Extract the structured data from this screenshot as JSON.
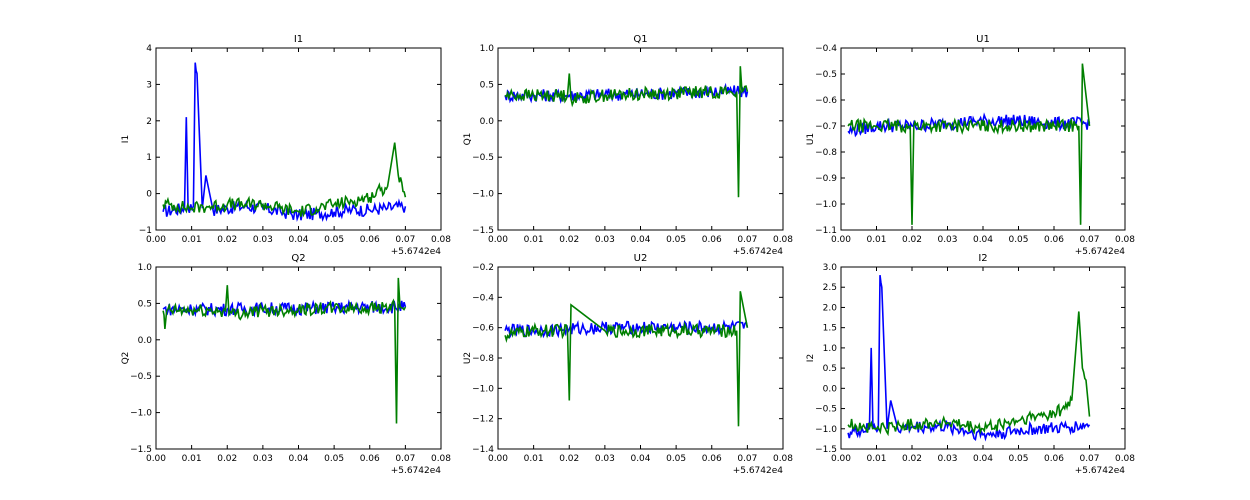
{
  "figure": {
    "background": "#ffffff",
    "series_colors": [
      "#0000ff",
      "#007f00"
    ]
  },
  "chart_data": [
    {
      "type": "line",
      "title": "I1",
      "ylabel": "I1",
      "xlim": [
        0.0,
        0.08
      ],
      "ylim": [
        -1,
        4
      ],
      "x_ticks": [
        "0.00",
        "0.01",
        "0.02",
        "0.03",
        "0.04",
        "0.05",
        "0.06",
        "0.07",
        "0.08"
      ],
      "y_ticks": [
        "−1",
        "0",
        "1",
        "2",
        "3",
        "4"
      ],
      "x_offset_label": "+5.6742e4",
      "grid": false,
      "series": [
        {
          "color": "#0000ff",
          "x": [
            0.002,
            0.005,
            0.008,
            0.0085,
            0.009,
            0.0105,
            0.011,
            0.0115,
            0.013,
            0.014,
            0.016,
            0.02,
            0.025,
            0.03,
            0.035,
            0.04,
            0.045,
            0.05,
            0.055,
            0.06,
            0.065,
            0.07
          ],
          "y": [
            -0.5,
            -0.45,
            -0.4,
            2.1,
            -0.4,
            -0.35,
            3.6,
            3.3,
            -0.4,
            0.5,
            -0.45,
            -0.4,
            -0.35,
            -0.4,
            -0.5,
            -0.6,
            -0.55,
            -0.5,
            -0.45,
            -0.45,
            -0.4,
            -0.35
          ]
        },
        {
          "color": "#007f00",
          "x": [
            0.002,
            0.004,
            0.006,
            0.01,
            0.015,
            0.02,
            0.025,
            0.03,
            0.035,
            0.04,
            0.045,
            0.05,
            0.055,
            0.06,
            0.063,
            0.065,
            0.067,
            0.068,
            0.069,
            0.07
          ],
          "y": [
            -0.3,
            -0.3,
            -0.35,
            -0.4,
            -0.35,
            -0.3,
            -0.3,
            -0.3,
            -0.4,
            -0.5,
            -0.4,
            -0.3,
            -0.2,
            -0.1,
            0.1,
            0.2,
            1.4,
            0.5,
            0.3,
            -0.1
          ]
        }
      ]
    },
    {
      "type": "line",
      "title": "Q1",
      "ylabel": "Q1",
      "xlim": [
        0.0,
        0.08
      ],
      "ylim": [
        -1.5,
        1.0
      ],
      "x_ticks": [
        "0.00",
        "0.01",
        "0.02",
        "0.03",
        "0.04",
        "0.05",
        "0.06",
        "0.07",
        "0.08"
      ],
      "y_ticks": [
        "−1.5",
        "−1.0",
        "−0.5",
        "0.0",
        "0.5",
        "1.0"
      ],
      "x_offset_label": "+5.6742e4",
      "grid": false,
      "series": [
        {
          "color": "#0000ff",
          "x": [
            0.002,
            0.01,
            0.02,
            0.03,
            0.04,
            0.05,
            0.06,
            0.067,
            0.068,
            0.07
          ],
          "y": [
            0.35,
            0.35,
            0.35,
            0.36,
            0.37,
            0.38,
            0.4,
            0.4,
            0.4,
            0.4
          ]
        },
        {
          "color": "#007f00",
          "x": [
            0.002,
            0.01,
            0.0195,
            0.02,
            0.0205,
            0.03,
            0.04,
            0.05,
            0.06,
            0.067,
            0.0675,
            0.068,
            0.0685,
            0.07
          ],
          "y": [
            0.35,
            0.35,
            0.35,
            0.65,
            0.3,
            0.35,
            0.37,
            0.38,
            0.4,
            0.4,
            -1.05,
            0.75,
            0.4,
            0.4
          ]
        }
      ]
    },
    {
      "type": "line",
      "title": "U1",
      "ylabel": "U1",
      "xlim": [
        0.0,
        0.08
      ],
      "ylim": [
        -1.1,
        -0.4
      ],
      "x_ticks": [
        "0.00",
        "0.01",
        "0.02",
        "0.03",
        "0.04",
        "0.05",
        "0.06",
        "0.07",
        "0.08"
      ],
      "y_ticks": [
        "−1.1",
        "−1.0",
        "−0.9",
        "−0.8",
        "−0.7",
        "−0.6",
        "−0.5",
        "−0.4"
      ],
      "x_offset_label": "+5.6742e4",
      "grid": false,
      "series": [
        {
          "color": "#0000ff",
          "x": [
            0.002,
            0.01,
            0.02,
            0.03,
            0.04,
            0.05,
            0.06,
            0.07
          ],
          "y": [
            -0.72,
            -0.7,
            -0.7,
            -0.69,
            -0.68,
            -0.68,
            -0.69,
            -0.69
          ]
        },
        {
          "color": "#007f00",
          "x": [
            0.002,
            0.01,
            0.0195,
            0.02,
            0.0205,
            0.03,
            0.04,
            0.05,
            0.06,
            0.067,
            0.0675,
            0.068,
            0.07
          ],
          "y": [
            -0.7,
            -0.7,
            -0.7,
            -1.08,
            -0.7,
            -0.7,
            -0.7,
            -0.7,
            -0.7,
            -0.7,
            -1.08,
            -0.46,
            -0.7
          ]
        }
      ]
    },
    {
      "type": "line",
      "title": "Q2",
      "ylabel": "Q2",
      "xlim": [
        0.0,
        0.08
      ],
      "ylim": [
        -1.5,
        1.0
      ],
      "x_ticks": [
        "0.00",
        "0.01",
        "0.02",
        "0.03",
        "0.04",
        "0.05",
        "0.06",
        "0.07",
        "0.08"
      ],
      "y_ticks": [
        "−1.5",
        "−1.0",
        "−0.5",
        "0.0",
        "0.5",
        "1.0"
      ],
      "x_offset_label": "+5.6742e4",
      "grid": false,
      "series": [
        {
          "color": "#0000ff",
          "x": [
            0.002,
            0.01,
            0.02,
            0.03,
            0.04,
            0.05,
            0.06,
            0.07
          ],
          "y": [
            0.42,
            0.42,
            0.42,
            0.43,
            0.43,
            0.44,
            0.45,
            0.45
          ]
        },
        {
          "color": "#007f00",
          "x": [
            0.002,
            0.0025,
            0.003,
            0.01,
            0.0195,
            0.02,
            0.0205,
            0.03,
            0.04,
            0.05,
            0.06,
            0.067,
            0.0675,
            0.068,
            0.0685,
            0.07
          ],
          "y": [
            0.4,
            0.15,
            0.4,
            0.4,
            0.4,
            0.75,
            0.35,
            0.4,
            0.42,
            0.43,
            0.44,
            0.45,
            -1.15,
            0.85,
            0.45,
            0.45
          ]
        }
      ]
    },
    {
      "type": "line",
      "title": "U2",
      "ylabel": "U2",
      "xlim": [
        0.0,
        0.08
      ],
      "ylim": [
        -1.4,
        -0.2
      ],
      "x_ticks": [
        "0.00",
        "0.01",
        "0.02",
        "0.03",
        "0.04",
        "0.05",
        "0.06",
        "0.07",
        "0.08"
      ],
      "y_ticks": [
        "−1.4",
        "−1.2",
        "−1.0",
        "−0.8",
        "−0.6",
        "−0.4",
        "−0.2"
      ],
      "x_offset_label": "+5.6742e4",
      "grid": false,
      "series": [
        {
          "color": "#0000ff",
          "x": [
            0.002,
            0.01,
            0.02,
            0.03,
            0.04,
            0.05,
            0.06,
            0.07
          ],
          "y": [
            -0.62,
            -0.62,
            -0.61,
            -0.6,
            -0.6,
            -0.6,
            -0.6,
            -0.6
          ]
        },
        {
          "color": "#007f00",
          "x": [
            0.002,
            0.01,
            0.0195,
            0.02,
            0.0205,
            0.03,
            0.04,
            0.05,
            0.06,
            0.067,
            0.0675,
            0.068,
            0.07
          ],
          "y": [
            -0.65,
            -0.62,
            -0.62,
            -1.08,
            -0.45,
            -0.62,
            -0.62,
            -0.62,
            -0.62,
            -0.62,
            -1.25,
            -0.36,
            -0.6
          ]
        }
      ]
    },
    {
      "type": "line",
      "title": "I2",
      "ylabel": "I2",
      "xlim": [
        0.0,
        0.08
      ],
      "ylim": [
        -1.5,
        3.0
      ],
      "x_ticks": [
        "0.00",
        "0.01",
        "0.02",
        "0.03",
        "0.04",
        "0.05",
        "0.06",
        "0.07",
        "0.08"
      ],
      "y_ticks": [
        "−1.5",
        "−1.0",
        "−0.5",
        "0.0",
        "0.5",
        "1.0",
        "1.5",
        "2.0",
        "2.5",
        "3.0"
      ],
      "x_offset_label": "+5.6742e4",
      "grid": false,
      "series": [
        {
          "color": "#0000ff",
          "x": [
            0.002,
            0.005,
            0.008,
            0.0085,
            0.009,
            0.0105,
            0.011,
            0.0115,
            0.013,
            0.014,
            0.016,
            0.02,
            0.025,
            0.03,
            0.035,
            0.04,
            0.045,
            0.05,
            0.055,
            0.06,
            0.065,
            0.07
          ],
          "y": [
            -1.1,
            -1.05,
            -1.0,
            1.0,
            -1.0,
            -1.0,
            2.8,
            2.5,
            -1.0,
            -0.3,
            -1.0,
            -0.95,
            -0.95,
            -0.95,
            -1.05,
            -1.15,
            -1.1,
            -1.05,
            -1.0,
            -1.0,
            -0.95,
            -0.9
          ]
        },
        {
          "color": "#007f00",
          "x": [
            0.002,
            0.004,
            0.006,
            0.01,
            0.015,
            0.02,
            0.025,
            0.03,
            0.035,
            0.04,
            0.045,
            0.05,
            0.055,
            0.06,
            0.063,
            0.065,
            0.067,
            0.068,
            0.069,
            0.07
          ],
          "y": [
            -0.9,
            -0.9,
            -0.95,
            -1.0,
            -0.95,
            -0.9,
            -0.85,
            -0.85,
            -0.95,
            -1.0,
            -0.9,
            -0.8,
            -0.7,
            -0.6,
            -0.5,
            -0.3,
            1.9,
            0.5,
            0.2,
            -0.7
          ]
        }
      ]
    }
  ]
}
